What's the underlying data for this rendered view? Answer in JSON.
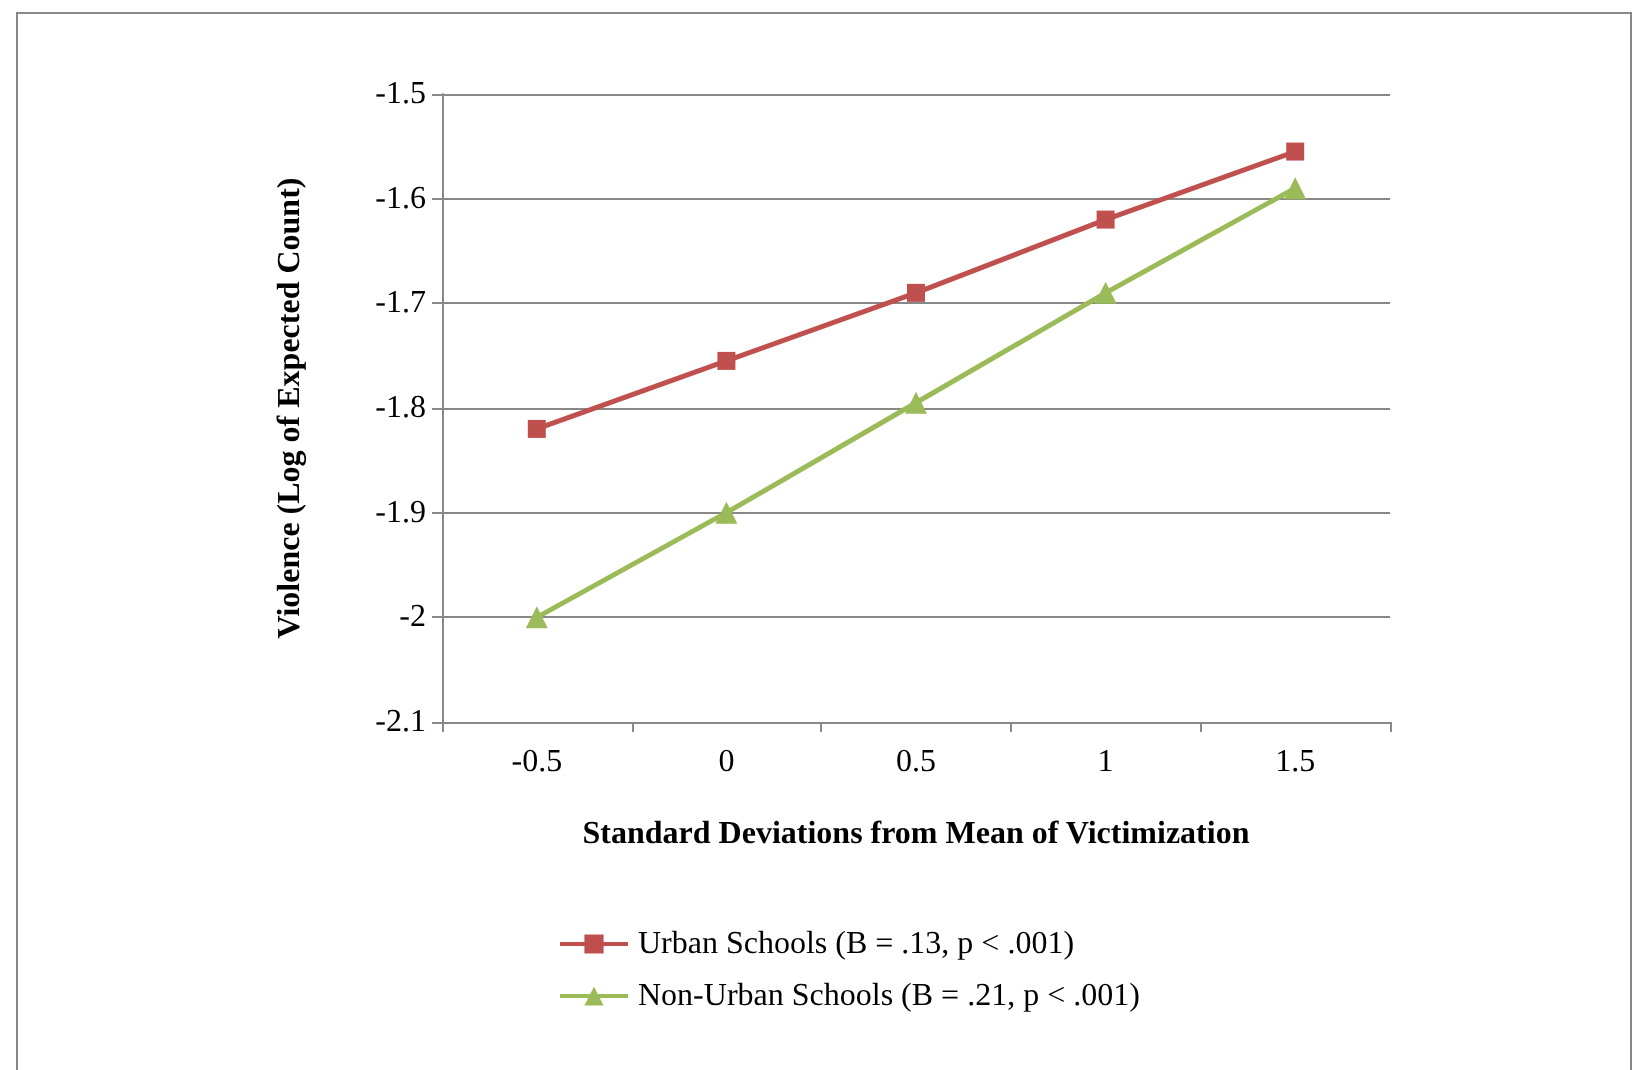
{
  "chart_data": {
    "type": "line",
    "xlabel": "Standard Deviations from Mean of Victimization",
    "ylabel": "Violence (Log of Expected Count)",
    "categories": [
      "-0.5",
      "0",
      "0.5",
      "1",
      "1.5"
    ],
    "series": [
      {
        "name": "Urban Schools (B = .13, p < .001)",
        "color": "#c0504d",
        "marker": "square",
        "values": [
          -1.82,
          -1.755,
          -1.69,
          -1.62,
          -1.555
        ]
      },
      {
        "name": "Non-Urban Schools (B = .21, p < .001)",
        "color": "#9bbb59",
        "marker": "triangle",
        "values": [
          -2.0,
          -1.9,
          -1.795,
          -1.69,
          -1.59
        ]
      }
    ],
    "ylim": [
      -2.1,
      -1.5
    ],
    "yticks": [
      -2.1,
      -2,
      -1.9,
      -1.8,
      -1.7,
      -1.6,
      -1.5
    ],
    "grid": "y",
    "legend": "bottom",
    "line_style": "solid"
  }
}
